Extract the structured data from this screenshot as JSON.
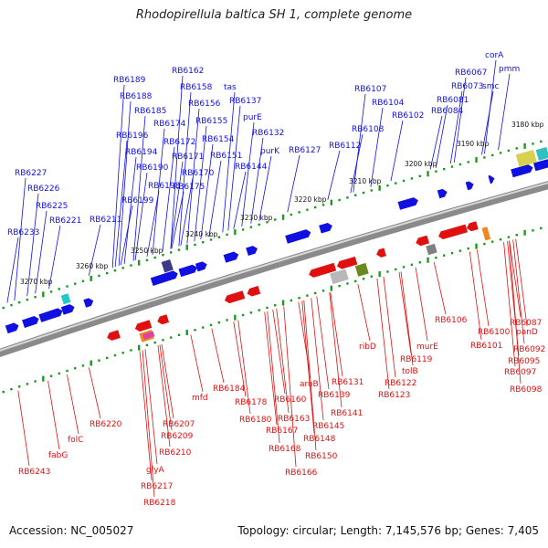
{
  "title": "Rhodopirellula baltica SH 1, complete genome",
  "footer": {
    "accession": "Accession: NC_005027",
    "summary": "Topology: circular; Length: 7,145,576 bp; Genes: 7,405"
  },
  "colors": {
    "forward": "#1010e0",
    "reverse": "#e01010",
    "backbone": "#8a8a8a",
    "dots": "#1a9a1a"
  },
  "scale_ticks": [
    {
      "label": "3180 kbp"
    },
    {
      "label": "3190 kbp"
    },
    {
      "label": "3200 kbp"
    },
    {
      "label": "3210 kbp"
    },
    {
      "label": "3220 kbp"
    },
    {
      "label": "3230 kbp"
    },
    {
      "label": "3240 kbp"
    },
    {
      "label": "3250 kbp"
    },
    {
      "label": "3260 kbp"
    },
    {
      "label": "3270 kbp"
    }
  ],
  "forward_genes": [
    {
      "label": "corA"
    },
    {
      "label": "pmm"
    },
    {
      "label": "RB6067"
    },
    {
      "label": "RB6073"
    },
    {
      "label": "smc"
    },
    {
      "label": "RB6081"
    },
    {
      "label": "RB6084"
    },
    {
      "label": "RB6107"
    },
    {
      "label": "RB6104"
    },
    {
      "label": "RB6102"
    },
    {
      "label": "RB6108"
    },
    {
      "label": "RB6112"
    },
    {
      "label": "RB6127"
    },
    {
      "label": "tas"
    },
    {
      "label": "RB6137"
    },
    {
      "label": "purE"
    },
    {
      "label": "RB6132"
    },
    {
      "label": "purK"
    },
    {
      "label": "RB6144"
    },
    {
      "label": "RB6162"
    },
    {
      "label": "RB6158"
    },
    {
      "label": "RB6156"
    },
    {
      "label": "RB6155"
    },
    {
      "label": "RB6154"
    },
    {
      "label": "RB6151"
    },
    {
      "label": "RB6189"
    },
    {
      "label": "RB6188"
    },
    {
      "label": "RB6185"
    },
    {
      "label": "RB6174"
    },
    {
      "label": "RB6172"
    },
    {
      "label": "RB6171"
    },
    {
      "label": "RB6170"
    },
    {
      "label": "RB6175"
    },
    {
      "label": "RB6196"
    },
    {
      "label": "RB6194"
    },
    {
      "label": "RB6190"
    },
    {
      "label": "RB6193"
    },
    {
      "label": "RB6199"
    },
    {
      "label": "RB6227"
    },
    {
      "label": "RB6226"
    },
    {
      "label": "RB6225"
    },
    {
      "label": "RB6221"
    },
    {
      "label": "RB6211"
    },
    {
      "label": "RB6233"
    }
  ],
  "reverse_genes": [
    {
      "label": "RB6087"
    },
    {
      "label": "panD"
    },
    {
      "label": "RB6100"
    },
    {
      "label": "RB6101"
    },
    {
      "label": "RB6092"
    },
    {
      "label": "RB6095"
    },
    {
      "label": "RB6097"
    },
    {
      "label": "RB6098"
    },
    {
      "label": "RB6106"
    },
    {
      "label": "murE"
    },
    {
      "label": "RB6119"
    },
    {
      "label": "tolB"
    },
    {
      "label": "ribD"
    },
    {
      "label": "RB6122"
    },
    {
      "label": "RB6123"
    },
    {
      "label": "RB6131"
    },
    {
      "label": "aroB"
    },
    {
      "label": "RB6139"
    },
    {
      "label": "RB6141"
    },
    {
      "label": "RB6145"
    },
    {
      "label": "RB6148"
    },
    {
      "label": "RB6150"
    },
    {
      "label": "RB6160"
    },
    {
      "label": "RB6163"
    },
    {
      "label": "RB6167"
    },
    {
      "label": "RB6166"
    },
    {
      "label": "RB6168"
    },
    {
      "label": "RB6178"
    },
    {
      "label": "RB6180"
    },
    {
      "label": "RB6184"
    },
    {
      "label": "mfd"
    },
    {
      "label": "RB6207"
    },
    {
      "label": "RB6209"
    },
    {
      "label": "RB6210"
    },
    {
      "label": "glyA"
    },
    {
      "label": "RB6217"
    },
    {
      "label": "RB6218"
    },
    {
      "label": "RB6220"
    },
    {
      "label": "folC"
    },
    {
      "label": "fabG"
    },
    {
      "label": "RB6243"
    }
  ]
}
